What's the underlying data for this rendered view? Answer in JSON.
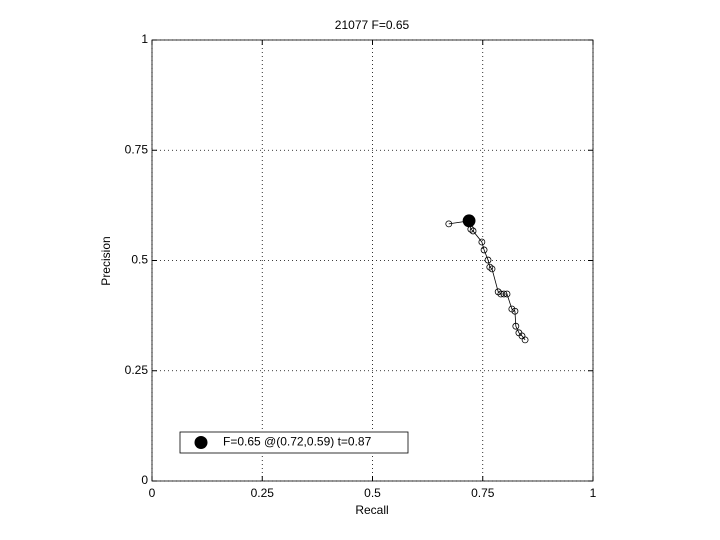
{
  "chart_data": {
    "type": "line",
    "title": "21077 F=0.65",
    "x_label": "Recall",
    "y_label": "Precision",
    "xlim": [
      0,
      1
    ],
    "ylim": [
      0,
      1
    ],
    "xticks": [
      0,
      0.25,
      0.5,
      0.75,
      1
    ],
    "yticks": [
      0,
      0.25,
      0.5,
      0.75,
      1
    ],
    "grid": true,
    "legend_position": "lower left",
    "series": [
      {
        "color": "#000000",
        "marker": "open-circle",
        "x": [
          0.673,
          0.719,
          0.723,
          0.728,
          0.748,
          0.753,
          0.762,
          0.766,
          0.771,
          0.785,
          0.791,
          0.798,
          0.805,
          0.816,
          0.823,
          0.825,
          0.832,
          0.839,
          0.846
        ],
        "values": [
          0.583,
          0.59,
          0.571,
          0.567,
          0.542,
          0.524,
          0.501,
          0.485,
          0.481,
          0.429,
          0.424,
          0.424,
          0.424,
          0.39,
          0.385,
          0.351,
          0.336,
          0.329,
          0.32
        ]
      },
      {
        "name": "F=0.65 @(0.72,0.59) t=0.87",
        "color": "#000000",
        "marker": "filled-circle",
        "x": [
          0.719
        ],
        "values": [
          0.59
        ]
      }
    ]
  }
}
